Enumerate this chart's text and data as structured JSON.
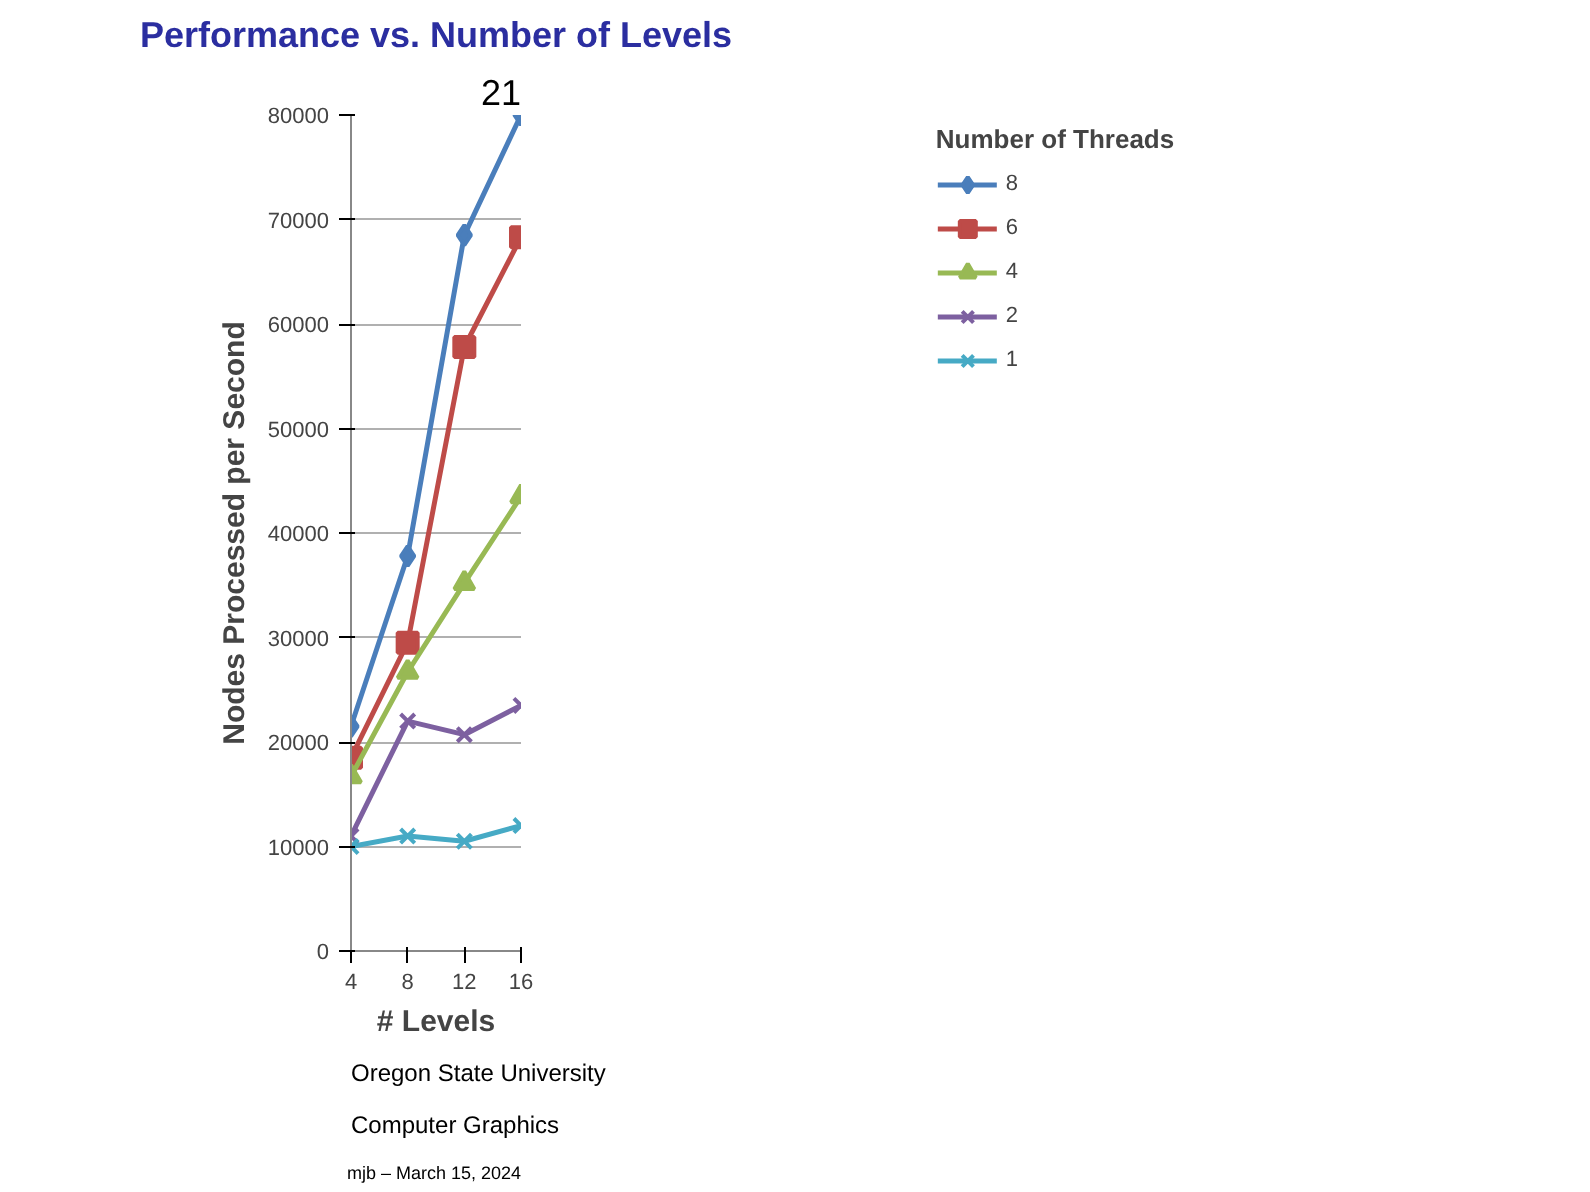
{
  "chart_data": {
    "type": "line",
    "title": "Performance vs. Number of Levels",
    "xlabel": "# Levels",
    "ylabel": "Nodes Processed per Second",
    "legend_title": "Number of Threads",
    "x": [
      4,
      8,
      12,
      16
    ],
    "xlim": [
      4,
      16
    ],
    "xticks": [
      4,
      8,
      12,
      16
    ],
    "ylim": [
      0,
      80000
    ],
    "yticks": [
      0,
      10000,
      20000,
      30000,
      40000,
      50000,
      60000,
      70000,
      80000
    ],
    "grid": "y",
    "legend": "right",
    "series": [
      {
        "name": "8",
        "color": "#4a7ebb",
        "marker": "diamond",
        "values": [
          21500,
          37800,
          68500,
          80000
        ]
      },
      {
        "name": "6",
        "color": "#be4b48",
        "marker": "square",
        "values": [
          18500,
          29500,
          57800,
          68300
        ]
      },
      {
        "name": "4",
        "color": "#98b954",
        "marker": "triangle",
        "values": [
          16700,
          26700,
          35200,
          43500
        ]
      },
      {
        "name": "2",
        "color": "#7d60a0",
        "marker": "cross",
        "values": [
          11000,
          22000,
          20700,
          23500
        ]
      },
      {
        "name": "1",
        "color": "#46aac5",
        "marker": "cross",
        "values": [
          10000,
          11000,
          10500,
          12000
        ]
      }
    ],
    "annotations": [
      "21",
      "Oregon State University",
      "Computer Graphics",
      "mjb – March 15, 2024"
    ]
  }
}
